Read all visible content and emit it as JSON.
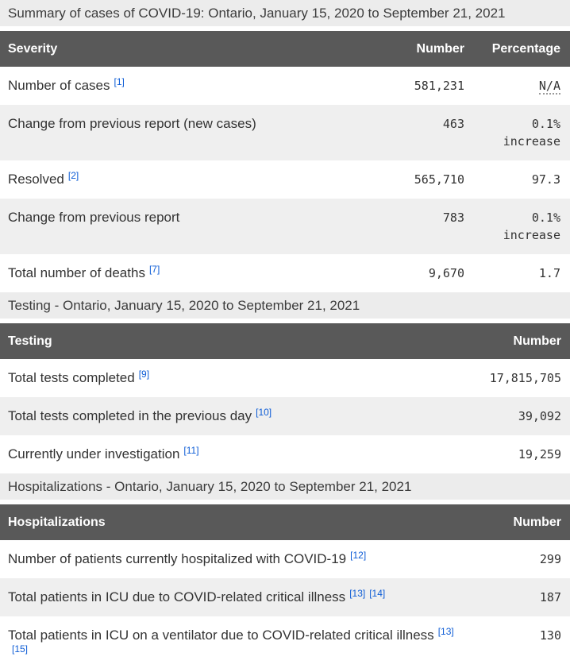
{
  "colors": {
    "header_bg": "#595959",
    "header_text": "#ffffff",
    "stripe_bg": "#efefef",
    "caption_bg": "#ececec",
    "link_blue": "#0d5cd6",
    "body_text": "#333333"
  },
  "summary_table": {
    "caption": "Summary of cases of COVID-19: Ontario, January 15, 2020 to September 21, 2021",
    "columns": {
      "c1": "Severity",
      "c2": "Number",
      "c3": "Percentage"
    },
    "rows": [
      {
        "label": "Number of cases",
        "fn0": "[1]",
        "number": "581,231",
        "pct": "N/A",
        "pct2": ""
      },
      {
        "label": "Change from previous report (new cases)",
        "number": "463",
        "pct": "0.1%",
        "pct2": "increase"
      },
      {
        "label": "Resolved",
        "fn0": "[2]",
        "number": "565,710",
        "pct": "97.3",
        "pct2": ""
      },
      {
        "label": "Change from previous report",
        "number": "783",
        "pct": "0.1%",
        "pct2": "increase"
      },
      {
        "label": "Total number of deaths",
        "fn0": "[7]",
        "number": "9,670",
        "pct": "1.7",
        "pct2": ""
      }
    ]
  },
  "testing_table": {
    "caption": "Testing - Ontario, January 15, 2020 to September 21, 2021",
    "columns": {
      "c1": "Testing",
      "c2": "Number"
    },
    "rows": [
      {
        "label": "Total tests completed",
        "fn0": "[9]",
        "number": "17,815,705"
      },
      {
        "label": "Total tests completed in the previous day",
        "fn0": "[10]",
        "number": "39,092"
      },
      {
        "label": "Currently under investigation",
        "fn0": "[11]",
        "number": "19,259"
      }
    ]
  },
  "hosp_table": {
    "caption": "Hospitalizations - Ontario, January 15, 2020 to September 21, 2021",
    "columns": {
      "c1": "Hospitalizations",
      "c2": "Number"
    },
    "rows": [
      {
        "label": "Number of patients currently hospitalized with COVID-19",
        "fn0": "[12]",
        "number": "299"
      },
      {
        "label": "Total patients in ICU due to COVID-related critical illness",
        "fn0": "[13]",
        "fn1": "[14]",
        "number": "187"
      },
      {
        "label": "Total patients in ICU on a ventilator due to COVID-related critical illness",
        "fn0": "[13]",
        "fn1": "[15]",
        "number": "130"
      }
    ]
  }
}
